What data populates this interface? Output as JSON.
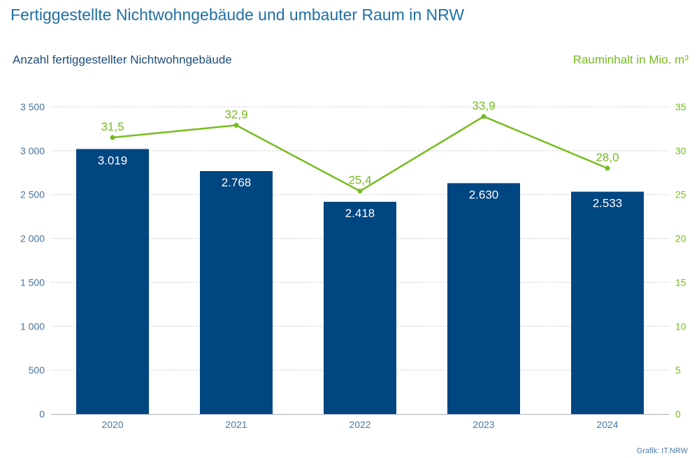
{
  "title": "Fertiggestellte Nichtwohngebäude und umbauter Raum in NRW",
  "source": "Grafik: IT.NRW",
  "colors": {
    "bars": "#004681",
    "line": "#77bc1f",
    "title": "#1f6fa3",
    "left_axis_text": "#4a72a0",
    "grid": "#c8c8c8"
  },
  "chart_data": {
    "type": "bar+line",
    "title": "Fertiggestellte Nichtwohngebäude und umbauter Raum in NRW",
    "categories": [
      "2020",
      "2021",
      "2022",
      "2023",
      "2024"
    ],
    "series": [
      {
        "name": "Anzahl fertiggestellter Nichtwohngebäude",
        "type": "bar",
        "axis": "left",
        "values": [
          3019,
          2768,
          2418,
          2630,
          2533
        ],
        "labels": [
          "3.019",
          "2.768",
          "2.418",
          "2.630",
          "2.533"
        ]
      },
      {
        "name": "Rauminhalt in Mio. m³",
        "type": "line",
        "axis": "right",
        "values": [
          31.5,
          32.9,
          25.4,
          33.9,
          28.0
        ],
        "labels": [
          "31,5",
          "32,9",
          "25,4",
          "33,9",
          "28,0"
        ]
      }
    ],
    "ylabel_left": "Anzahl fertiggestellter Nichtwohngebäude",
    "ylabel_right": "Rauminhalt in Mio. m³",
    "ylim_left": [
      0,
      3500
    ],
    "ylim_right": [
      0,
      35
    ],
    "yticks_left": [
      {
        "value": 0,
        "label": "0"
      },
      {
        "value": 500,
        "label": "500"
      },
      {
        "value": 1000,
        "label": "1 000"
      },
      {
        "value": 1500,
        "label": "1 500"
      },
      {
        "value": 2000,
        "label": "2 000"
      },
      {
        "value": 2500,
        "label": "2 500"
      },
      {
        "value": 3000,
        "label": "3 000"
      },
      {
        "value": 3500,
        "label": "3 500"
      }
    ],
    "yticks_right": [
      {
        "value": 0,
        "label": "0"
      },
      {
        "value": 5,
        "label": "5"
      },
      {
        "value": 10,
        "label": "10"
      },
      {
        "value": 15,
        "label": "15"
      },
      {
        "value": 20,
        "label": "20"
      },
      {
        "value": 25,
        "label": "25"
      },
      {
        "value": 30,
        "label": "30"
      },
      {
        "value": 35,
        "label": "35"
      }
    ],
    "grid": true,
    "legend": "none"
  }
}
